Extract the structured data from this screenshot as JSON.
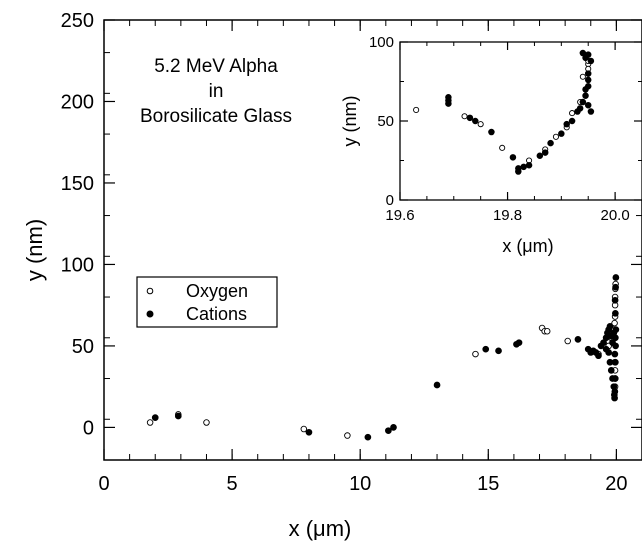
{
  "chart_data": [
    {
      "id": "main",
      "type": "scatter",
      "title": "",
      "annotation": [
        "5.2 MeV Alpha",
        "in",
        "Borosilicate Glass"
      ],
      "xlabel": "x (μm)",
      "ylabel": "y (nm)",
      "xlim": [
        0,
        21
      ],
      "ylim": [
        -20,
        250
      ],
      "xticks": [
        0,
        5,
        10,
        15,
        20
      ],
      "xtick_labels": [
        "0",
        "5",
        "10",
        "15",
        "20"
      ],
      "yticks": [
        0,
        50,
        100,
        150,
        200,
        250
      ],
      "ytick_labels": [
        "0",
        "50",
        "100",
        "150",
        "200",
        "250"
      ],
      "legend_position": "left",
      "series": [
        {
          "name": "Oxygen",
          "marker": "open-circle",
          "points": [
            [
              1.8,
              3
            ],
            [
              2.9,
              8
            ],
            [
              4.0,
              3
            ],
            [
              7.8,
              -1
            ],
            [
              9.5,
              -5
            ],
            [
              14.5,
              45
            ],
            [
              17.1,
              61
            ],
            [
              17.2,
              59
            ],
            [
              17.3,
              59
            ],
            [
              18.1,
              53
            ],
            [
              19.3,
              45
            ],
            [
              19.7,
              50
            ],
            [
              19.8,
              55
            ],
            [
              19.9,
              60
            ],
            [
              19.95,
              75
            ],
            [
              19.95,
              80
            ],
            [
              19.96,
              85
            ],
            [
              19.97,
              88
            ],
            [
              19.95,
              68
            ],
            [
              19.93,
              64
            ],
            [
              19.94,
              40
            ],
            [
              19.95,
              35
            ],
            [
              19.96,
              30
            ],
            [
              19.95,
              25
            ]
          ]
        },
        {
          "name": "Cations",
          "marker": "filled-circle",
          "points": [
            [
              2.0,
              6
            ],
            [
              2.9,
              7
            ],
            [
              8.0,
              -3
            ],
            [
              10.3,
              -6
            ],
            [
              11.1,
              -2
            ],
            [
              11.3,
              0
            ],
            [
              13.0,
              26
            ],
            [
              14.9,
              48
            ],
            [
              15.4,
              47
            ],
            [
              16.1,
              51
            ],
            [
              16.2,
              52
            ],
            [
              18.5,
              54
            ],
            [
              18.9,
              48
            ],
            [
              19.0,
              46
            ],
            [
              19.1,
              47
            ],
            [
              19.2,
              46
            ],
            [
              19.3,
              44
            ],
            [
              19.4,
              50
            ],
            [
              19.5,
              52
            ],
            [
              19.6,
              55
            ],
            [
              19.65,
              58
            ],
            [
              19.7,
              60
            ],
            [
              19.75,
              62
            ],
            [
              19.8,
              56
            ],
            [
              19.85,
              52
            ],
            [
              19.9,
              58
            ],
            [
              19.6,
              48
            ],
            [
              19.7,
              46
            ],
            [
              19.75,
              40
            ],
            [
              19.8,
              35
            ],
            [
              19.85,
              30
            ],
            [
              19.9,
              25
            ],
            [
              19.92,
              20
            ],
            [
              19.93,
              18
            ],
            [
              19.94,
              22
            ],
            [
              19.95,
              30
            ],
            [
              19.96,
              40
            ],
            [
              19.97,
              50
            ],
            [
              19.98,
              60
            ],
            [
              19.96,
              70
            ],
            [
              19.95,
              78
            ],
            [
              19.97,
              86
            ],
            [
              19.98,
              92
            ],
            [
              19.96,
              55
            ],
            [
              19.94,
              45
            ]
          ]
        }
      ]
    },
    {
      "id": "inset",
      "type": "scatter",
      "title": "",
      "xlabel": "x (μm)",
      "ylabel": "y (nm)",
      "xlim": [
        19.6,
        20.05
      ],
      "ylim": [
        0,
        100
      ],
      "xticks": [
        19.6,
        19.8,
        20.0
      ],
      "xtick_labels": [
        "19.6",
        "19.8",
        "20.0"
      ],
      "yticks": [
        0,
        50,
        100
      ],
      "ytick_labels": [
        "0",
        "50",
        "100"
      ],
      "series": [
        {
          "name": "Oxygen",
          "marker": "open-circle",
          "points": [
            [
              19.63,
              57
            ],
            [
              19.72,
              53
            ],
            [
              19.75,
              48
            ],
            [
              19.79,
              33
            ],
            [
              19.84,
              25
            ],
            [
              19.87,
              32
            ],
            [
              19.89,
              40
            ],
            [
              19.91,
              46
            ],
            [
              19.92,
              55
            ],
            [
              19.935,
              62
            ],
            [
              19.94,
              78
            ],
            [
              19.95,
              86
            ],
            [
              19.95,
              83
            ],
            [
              19.95,
              88
            ]
          ]
        },
        {
          "name": "Cations",
          "marker": "filled-circle",
          "points": [
            [
              19.69,
              61
            ],
            [
              19.69,
              63
            ],
            [
              19.69,
              65
            ],
            [
              19.73,
              52
            ],
            [
              19.74,
              50
            ],
            [
              19.77,
              43
            ],
            [
              19.81,
              27
            ],
            [
              19.82,
              18
            ],
            [
              19.82,
              20
            ],
            [
              19.83,
              21
            ],
            [
              19.84,
              22
            ],
            [
              19.86,
              28
            ],
            [
              19.87,
              30
            ],
            [
              19.88,
              36
            ],
            [
              19.9,
              42
            ],
            [
              19.91,
              48
            ],
            [
              19.92,
              50
            ],
            [
              19.93,
              56
            ],
            [
              19.935,
              58
            ],
            [
              19.94,
              62
            ],
            [
              19.945,
              66
            ],
            [
              19.945,
              70
            ],
            [
              19.95,
              72
            ],
            [
              19.95,
              76
            ],
            [
              19.95,
              80
            ],
            [
              19.945,
              90
            ],
            [
              19.95,
              92
            ],
            [
              19.955,
              88
            ],
            [
              19.94,
              93
            ],
            [
              19.95,
              60
            ],
            [
              19.955,
              56
            ]
          ]
        }
      ]
    }
  ],
  "legend": {
    "items": [
      {
        "label": "Oxygen",
        "marker": "open-circle"
      },
      {
        "label": "Cations",
        "marker": "filled-circle"
      }
    ]
  }
}
